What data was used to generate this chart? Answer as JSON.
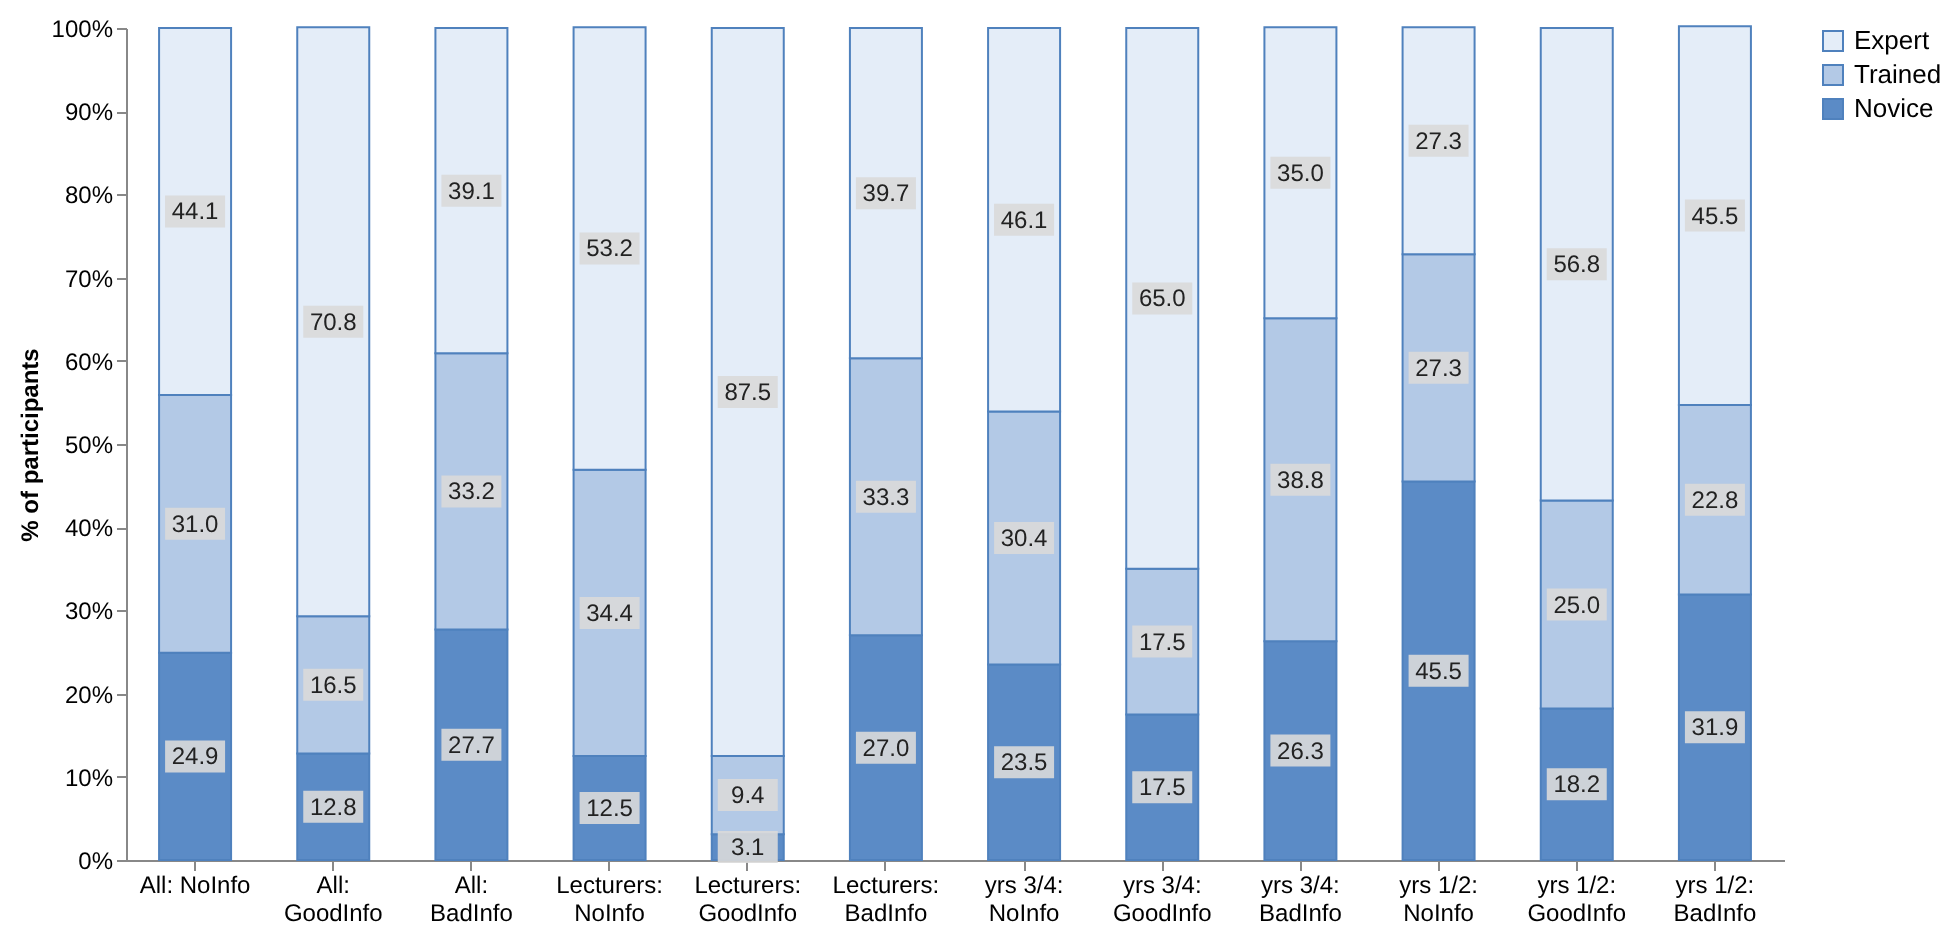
{
  "chart_data": {
    "type": "bar",
    "stacked": true,
    "ylabel": "% of participants",
    "categories": [
      "All: NoInfo",
      "All:\nGoodInfo",
      "All:\nBadInfo",
      "Lecturers:\nNoInfo",
      "Lecturers:\nGoodInfo",
      "Lecturers:\nBadInfo",
      "yrs 3/4:\nNoInfo",
      "yrs 3/4:\nGoodInfo",
      "yrs 3/4:\nBadInfo",
      "yrs 1/2:\nNoInfo",
      "yrs 1/2:\nGoodInfo",
      "yrs 1/2:\nBadInfo"
    ],
    "series": [
      {
        "name": "Novice",
        "color": "#5b8bc6",
        "values": [
          24.9,
          12.8,
          27.7,
          12.5,
          3.1,
          27.0,
          23.5,
          17.5,
          26.3,
          45.5,
          18.2,
          31.9
        ],
        "value_labels": [
          "24.9",
          "12.8",
          "27.7",
          "12.5",
          "3.1",
          "27.0",
          "23.5",
          "17.5",
          "26.3",
          "45.5",
          "18.2",
          "31.9"
        ]
      },
      {
        "name": "Trained",
        "color": "#b3c9e6",
        "values": [
          31.0,
          16.5,
          33.2,
          34.4,
          9.4,
          33.3,
          30.4,
          17.5,
          38.8,
          27.3,
          25.0,
          22.8
        ],
        "value_labels": [
          "31.0",
          "16.5",
          "33.2",
          "34.4",
          "9.4",
          "33.3",
          "30.4",
          "17.5",
          "38.8",
          "27.3",
          "25.0",
          "22.8"
        ]
      },
      {
        "name": "Expert",
        "color": "#e4edf8",
        "values": [
          44.1,
          70.8,
          39.1,
          53.2,
          87.5,
          39.7,
          46.1,
          65.0,
          35.0,
          27.3,
          56.8,
          45.5
        ],
        "value_labels": [
          "44.1",
          "70.8",
          "39.1",
          "53.2",
          "87.5",
          "39.7",
          "46.1",
          "65.0",
          "35.0",
          "27.3",
          "56.8",
          "45.5"
        ]
      }
    ],
    "ylim": [
      0,
      100
    ],
    "yticks": [
      {
        "value": 0,
        "label": "0%"
      },
      {
        "value": 10,
        "label": "10%"
      },
      {
        "value": 20,
        "label": "20%"
      },
      {
        "value": 30,
        "label": "30%"
      },
      {
        "value": 40,
        "label": "40%"
      },
      {
        "value": 50,
        "label": "50%"
      },
      {
        "value": 60,
        "label": "60%"
      },
      {
        "value": 70,
        "label": "70%"
      },
      {
        "value": 80,
        "label": "80%"
      },
      {
        "value": 90,
        "label": "90%"
      },
      {
        "value": 100,
        "label": "100%"
      }
    ],
    "grid": false,
    "legend": "right"
  }
}
